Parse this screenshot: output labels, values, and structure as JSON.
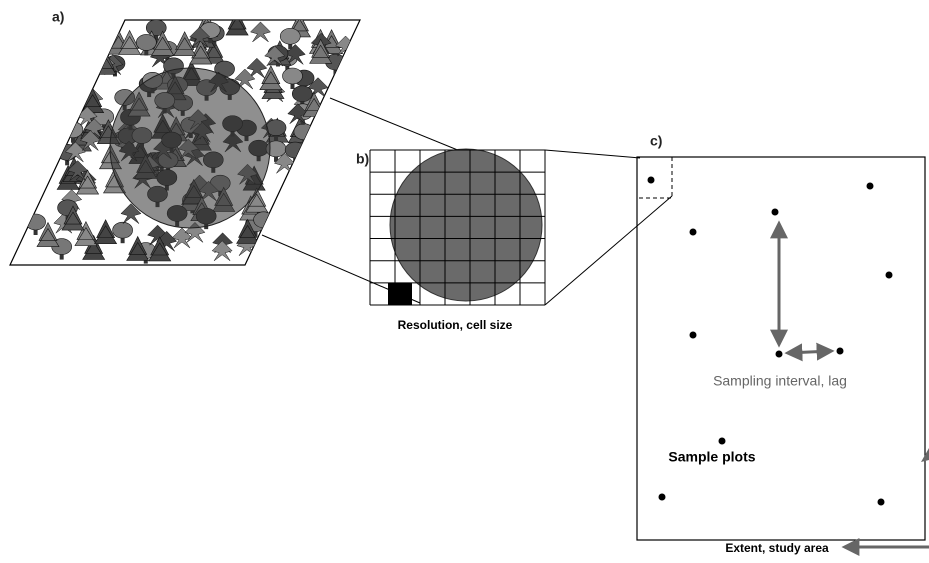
{
  "panels": {
    "a": {
      "label": "a)"
    },
    "b": {
      "label": "b)",
      "caption": "Resolution, cell size"
    },
    "c": {
      "label": "c)",
      "interval": "Sampling interval, lag",
      "plots": "Sample plots",
      "extent": "Extent, study area"
    }
  }
}
